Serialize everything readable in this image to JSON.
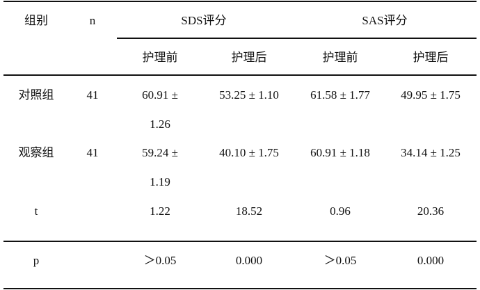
{
  "table": {
    "header": {
      "group": "组别",
      "n": "n",
      "sds": "SDS评分",
      "sas": "SAS评分",
      "sub": [
        "护理前",
        "护理后",
        "护理前",
        "护理后"
      ]
    },
    "rows": [
      {
        "group": "对照组",
        "n": "41",
        "values": [
          "60.91 ± 1.26",
          "53.25 ± 1.10",
          "61.58 ± 1.77",
          "49.95 ± 1.75"
        ]
      },
      {
        "group": "观察组",
        "n": "41",
        "values": [
          "59.24 ± 1.19",
          "40.10 ± 1.75",
          "60.91 ± 1.18",
          "34.14 ± 1.25"
        ]
      },
      {
        "group": "t",
        "values": [
          "1.22",
          "18.52",
          "0.96",
          "20.36"
        ]
      },
      {
        "group": "p",
        "values": [
          "＞0.05",
          "0.000",
          "＞0.05",
          "0.000"
        ]
      }
    ]
  }
}
